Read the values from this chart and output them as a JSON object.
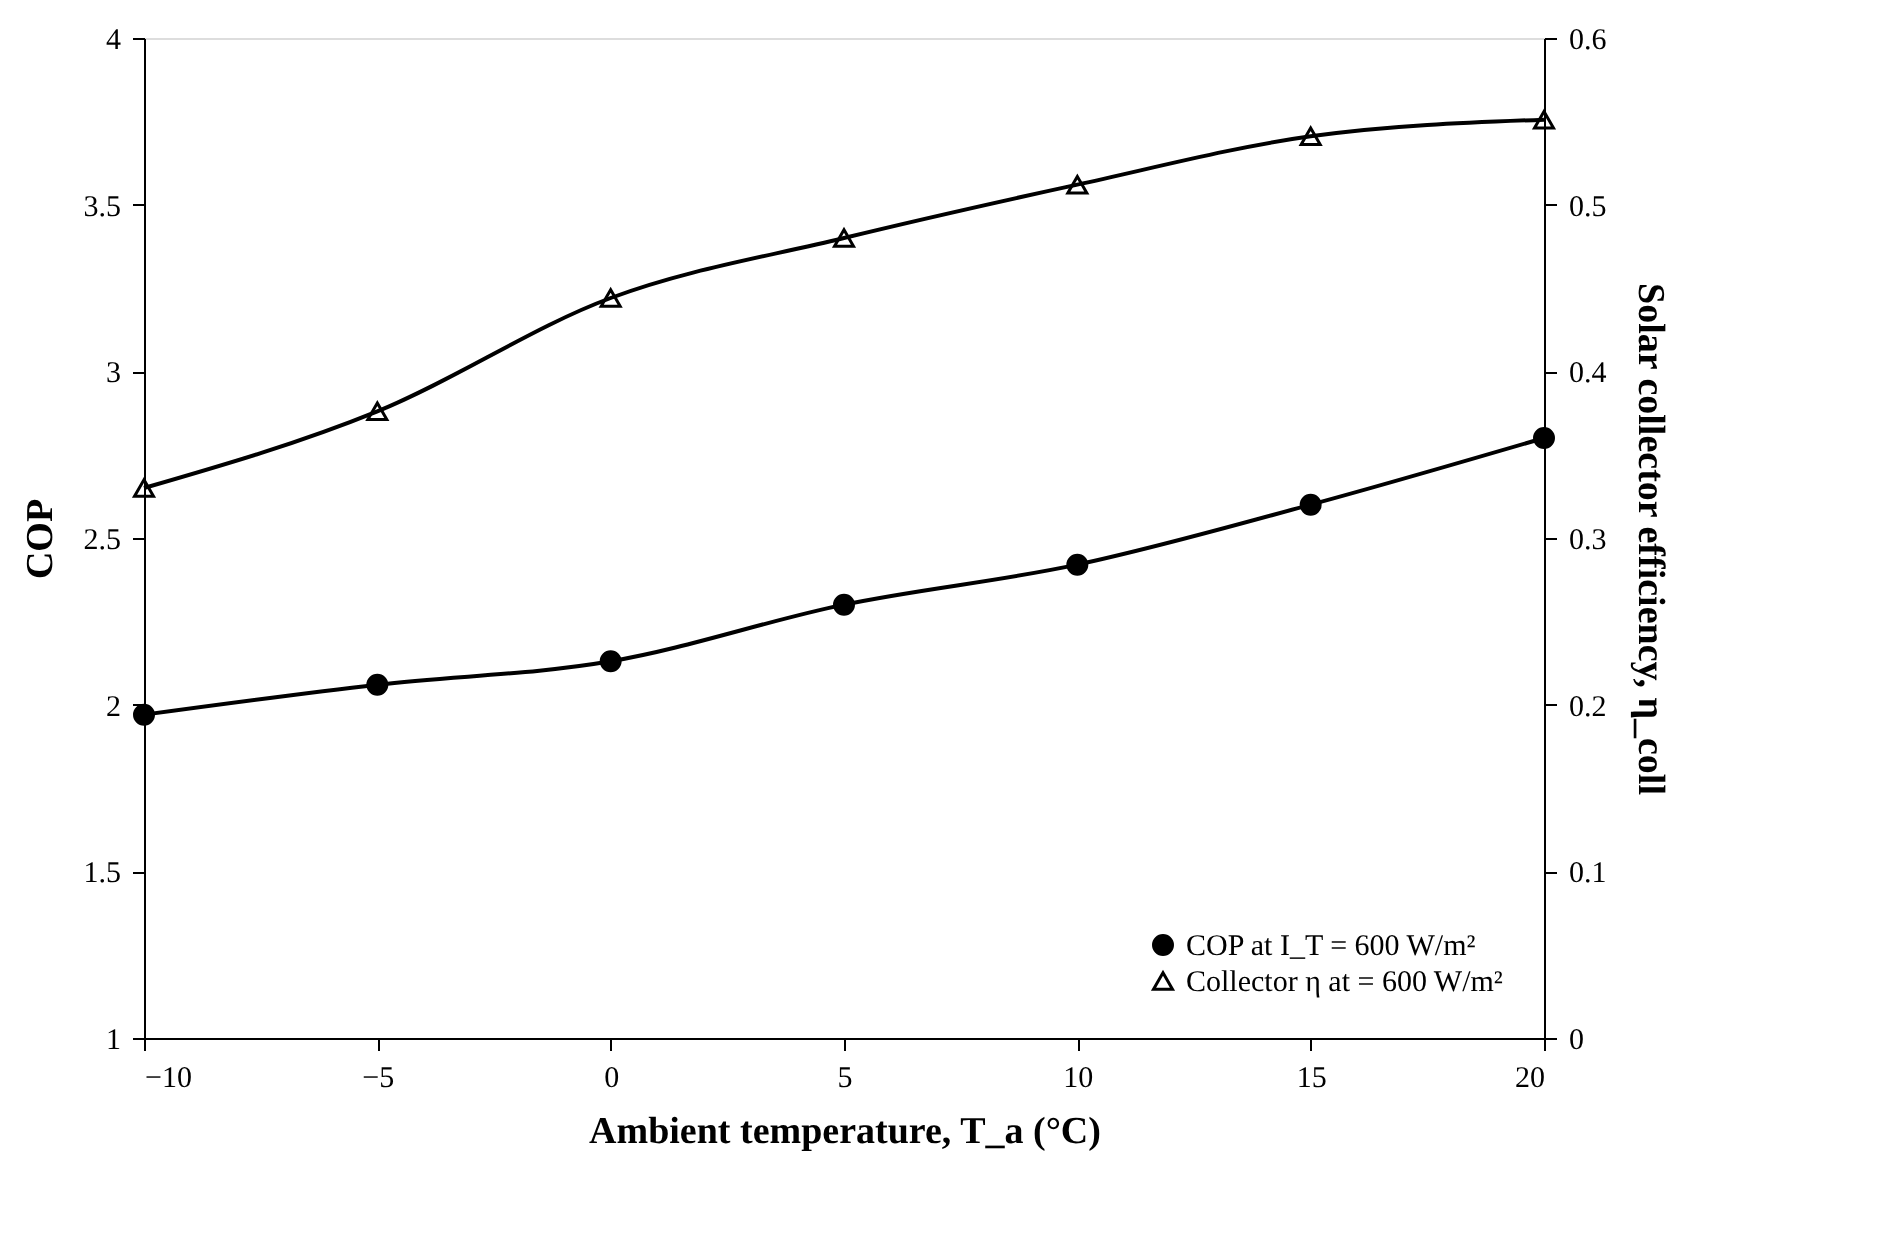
{
  "chart_data": {
    "type": "line",
    "xlabel": "Ambient temperature, T_a (°C)",
    "ylabel": "COP",
    "y2label": "Solar collector  efficiency, η_coll",
    "x": [
      -10,
      -5,
      0,
      5,
      10,
      15,
      20
    ],
    "series": [
      {
        "name": "COP at I_T = 600 W/m²",
        "color": "#000000",
        "marker": "circle",
        "values": [
          1.97,
          2.06,
          2.13,
          2.3,
          2.42,
          2.6,
          2.8
        ]
      },
      {
        "name": "Collector η at = 600 W/m²",
        "color": "#000000",
        "marker": "triangle",
        "axis": "y2",
        "values": [
          0.33,
          0.376,
          0.444,
          0.48,
          0.512,
          0.541,
          0.551
        ]
      }
    ],
    "xlim": [
      -10,
      20
    ],
    "xticks": [
      -10,
      -5,
      0,
      5,
      10,
      15,
      20
    ],
    "ylim": [
      1,
      4
    ],
    "yticks": [
      1,
      1.5,
      2,
      2.5,
      3,
      3.5,
      4
    ],
    "y2lim": [
      0,
      0.6
    ],
    "y2ticks": [
      0,
      0.1,
      0.2,
      0.3,
      0.4,
      0.5,
      0.6
    ],
    "grid": false,
    "legend": "bottom right",
    "line_style": "solid"
  }
}
